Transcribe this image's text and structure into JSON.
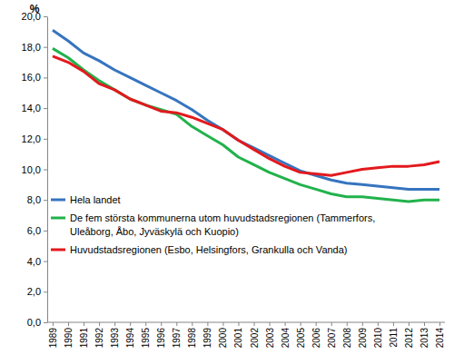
{
  "chart_data": {
    "type": "line",
    "ylabel": "%",
    "categories": [
      "1989",
      "1990",
      "1991",
      "1992",
      "1993",
      "1994",
      "1995",
      "1996",
      "1997",
      "1998",
      "1999",
      "2000",
      "2001",
      "2002",
      "2003",
      "2004",
      "2005",
      "2006",
      "2007",
      "2008",
      "2009",
      "2010",
      "2011",
      "2012",
      "2013",
      "2014"
    ],
    "series": [
      {
        "name": "Hela landet",
        "color": "#3674bf",
        "values": [
          19.1,
          18.4,
          17.6,
          17.1,
          16.5,
          16.0,
          15.5,
          15.0,
          14.5,
          13.9,
          13.2,
          12.6,
          11.9,
          11.4,
          10.9,
          10.4,
          9.9,
          9.6,
          9.3,
          9.1,
          9.0,
          8.9,
          8.8,
          8.7,
          8.7,
          8.7
        ]
      },
      {
        "name": "De fem största kommunerna utom huvudstadsregionen (Tammerfors, Uleåborg, Åbo, Jyväskylä och Kuopio)",
        "color": "#21b24b",
        "values": [
          17.9,
          17.3,
          16.5,
          15.8,
          15.2,
          14.6,
          14.2,
          13.9,
          13.6,
          12.8,
          12.2,
          11.6,
          10.8,
          10.3,
          9.8,
          9.4,
          9.0,
          8.7,
          8.4,
          8.2,
          8.2,
          8.1,
          8.0,
          7.9,
          8.0,
          8.0
        ]
      },
      {
        "name": "Huvudstadsregionen (Esbo, Helsingfors, Grankulla och Vanda)",
        "color": "#e3191d",
        "values": [
          17.4,
          17.0,
          16.4,
          15.6,
          15.2,
          14.6,
          14.2,
          13.8,
          13.7,
          13.4,
          13.0,
          12.6,
          11.9,
          11.3,
          10.7,
          10.2,
          9.8,
          9.7,
          9.6,
          9.8,
          10.0,
          10.1,
          10.2,
          10.2,
          10.3,
          10.5
        ]
      }
    ],
    "ylim": [
      0,
      20
    ],
    "yticks": [
      {
        "value": 0,
        "label": "0,0"
      },
      {
        "value": 2,
        "label": "2,0"
      },
      {
        "value": 4,
        "label": "4,0"
      },
      {
        "value": 6,
        "label": "6,0"
      },
      {
        "value": 8,
        "label": "8,0"
      },
      {
        "value": 10,
        "label": "10,0"
      },
      {
        "value": 12,
        "label": "12,0"
      },
      {
        "value": 14,
        "label": "14,0"
      },
      {
        "value": 16,
        "label": "16,0"
      },
      {
        "value": 18,
        "label": "18,0"
      },
      {
        "value": 20,
        "label": "20,0"
      }
    ],
    "grid": false,
    "legend": "lower left"
  }
}
